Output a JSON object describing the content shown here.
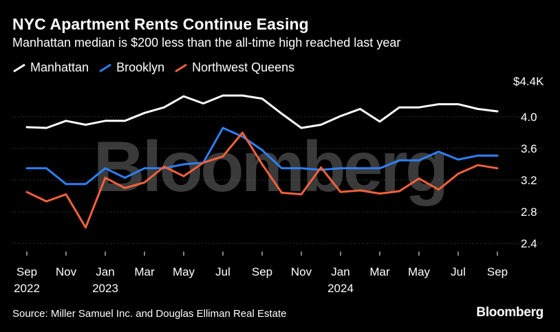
{
  "title": "NYC Apartment Rents Continue Easing",
  "subtitle": "Manhattan median is $200 less than the all-time high reached last year",
  "source": "Source: Miller Samuel Inc. and Douglas Elliman Real Estate",
  "brand": "Bloomberg",
  "watermark": "Bloomberg",
  "colors": {
    "background": "#000000",
    "manhattan": "#ffffff",
    "brooklyn": "#2f7ff2",
    "queens": "#f2613c",
    "gridline": "#555555",
    "watermark": "#6a6a6a"
  },
  "chart_data": {
    "type": "line",
    "x": [
      "2022-09",
      "2022-10",
      "2022-11",
      "2022-12",
      "2023-01",
      "2023-02",
      "2023-03",
      "2023-04",
      "2023-05",
      "2023-06",
      "2023-07",
      "2023-08",
      "2023-09",
      "2023-10",
      "2023-11",
      "2023-12",
      "2024-01",
      "2024-02",
      "2024-03",
      "2024-04",
      "2024-05",
      "2024-06",
      "2024-07",
      "2024-08",
      "2024-09"
    ],
    "x_tick_labels": [
      {
        "x": "2022-09",
        "month": "Sep",
        "year": "2022"
      },
      {
        "x": "2022-11",
        "month": "Nov",
        "year": ""
      },
      {
        "x": "2023-01",
        "month": "Jan",
        "year": "2023"
      },
      {
        "x": "2023-03",
        "month": "Mar",
        "year": ""
      },
      {
        "x": "2023-05",
        "month": "May",
        "year": ""
      },
      {
        "x": "2023-07",
        "month": "Jul",
        "year": ""
      },
      {
        "x": "2023-09",
        "month": "Sep",
        "year": ""
      },
      {
        "x": "2023-11",
        "month": "Nov",
        "year": ""
      },
      {
        "x": "2024-01",
        "month": "Jan",
        "year": "2024"
      },
      {
        "x": "2024-03",
        "month": "Mar",
        "year": ""
      },
      {
        "x": "2024-05",
        "month": "May",
        "year": ""
      },
      {
        "x": "2024-07",
        "month": "Jul",
        "year": ""
      },
      {
        "x": "2024-09",
        "month": "Sep",
        "year": ""
      }
    ],
    "y_ticks": [
      2.4,
      2.8,
      3.2,
      3.6,
      4.0,
      4.4
    ],
    "y_tick_labels": [
      "2.4",
      "2.8",
      "3.2",
      "3.6",
      "4.0",
      "$4.4K"
    ],
    "ylim": [
      2.4,
      4.4
    ],
    "grid": "horizontal",
    "y_axis_position": "right",
    "legend_position": "top-left",
    "series": [
      {
        "name": "Manhattan",
        "color": "#ffffff",
        "values": [
          3.87,
          3.86,
          3.95,
          3.9,
          3.95,
          3.95,
          4.05,
          4.12,
          4.26,
          4.17,
          4.27,
          4.27,
          4.23,
          4.04,
          3.86,
          3.9,
          4.01,
          4.1,
          3.94,
          4.12,
          4.12,
          4.16,
          4.16,
          4.1,
          4.07
        ]
      },
      {
        "name": "Brooklyn",
        "color": "#2f7ff2",
        "values": [
          3.35,
          3.35,
          3.15,
          3.15,
          3.35,
          3.23,
          3.35,
          3.35,
          3.4,
          3.42,
          3.86,
          3.75,
          3.58,
          3.35,
          3.35,
          3.33,
          3.35,
          3.35,
          3.35,
          3.45,
          3.45,
          3.56,
          3.46,
          3.51,
          3.51
        ]
      },
      {
        "name": "Northwest Queens",
        "color": "#f2613c",
        "values": [
          3.05,
          2.93,
          3.02,
          2.6,
          3.23,
          3.1,
          3.17,
          3.37,
          3.25,
          3.42,
          3.5,
          3.8,
          3.4,
          3.04,
          3.02,
          3.36,
          3.05,
          3.07,
          3.03,
          3.06,
          3.22,
          3.08,
          3.28,
          3.39,
          3.35
        ]
      }
    ]
  }
}
